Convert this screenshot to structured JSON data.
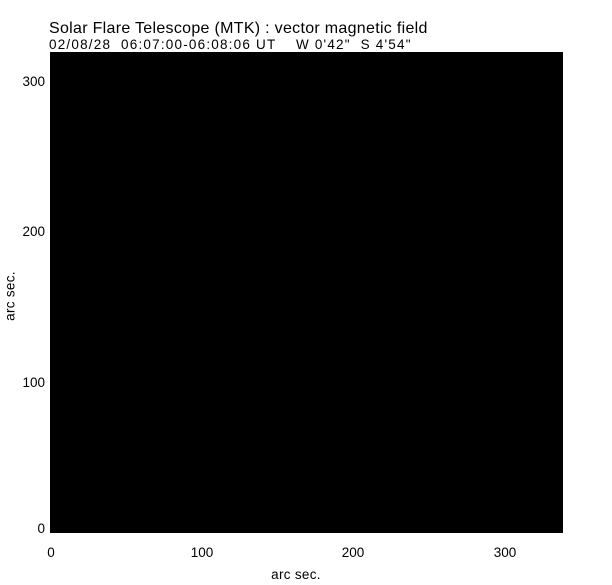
{
  "figure": {
    "background_color": "#ffffff",
    "foreground_color": "#000000"
  },
  "chart_data": {
    "type": "heatmap",
    "title": "Solar Flare Telescope (MTK) : vector magnetic field",
    "subtitle": "02/08/28  06:07:00-06:08:06 UT    W 0'42\"  S 4'54\"",
    "xlabel": "arc sec.",
    "ylabel": "arc sec.",
    "xlim": [
      0,
      340
    ],
    "ylim": [
      0,
      320
    ],
    "x_ticks": [
      "0",
      "100",
      "200",
      "300"
    ],
    "y_ticks_top_to_bottom": [
      "300",
      "200",
      "100",
      "0"
    ],
    "grid": false,
    "legend": false,
    "image": {
      "fill": "#000000",
      "description": "image region renders as uniform solid black with no visible features"
    }
  }
}
